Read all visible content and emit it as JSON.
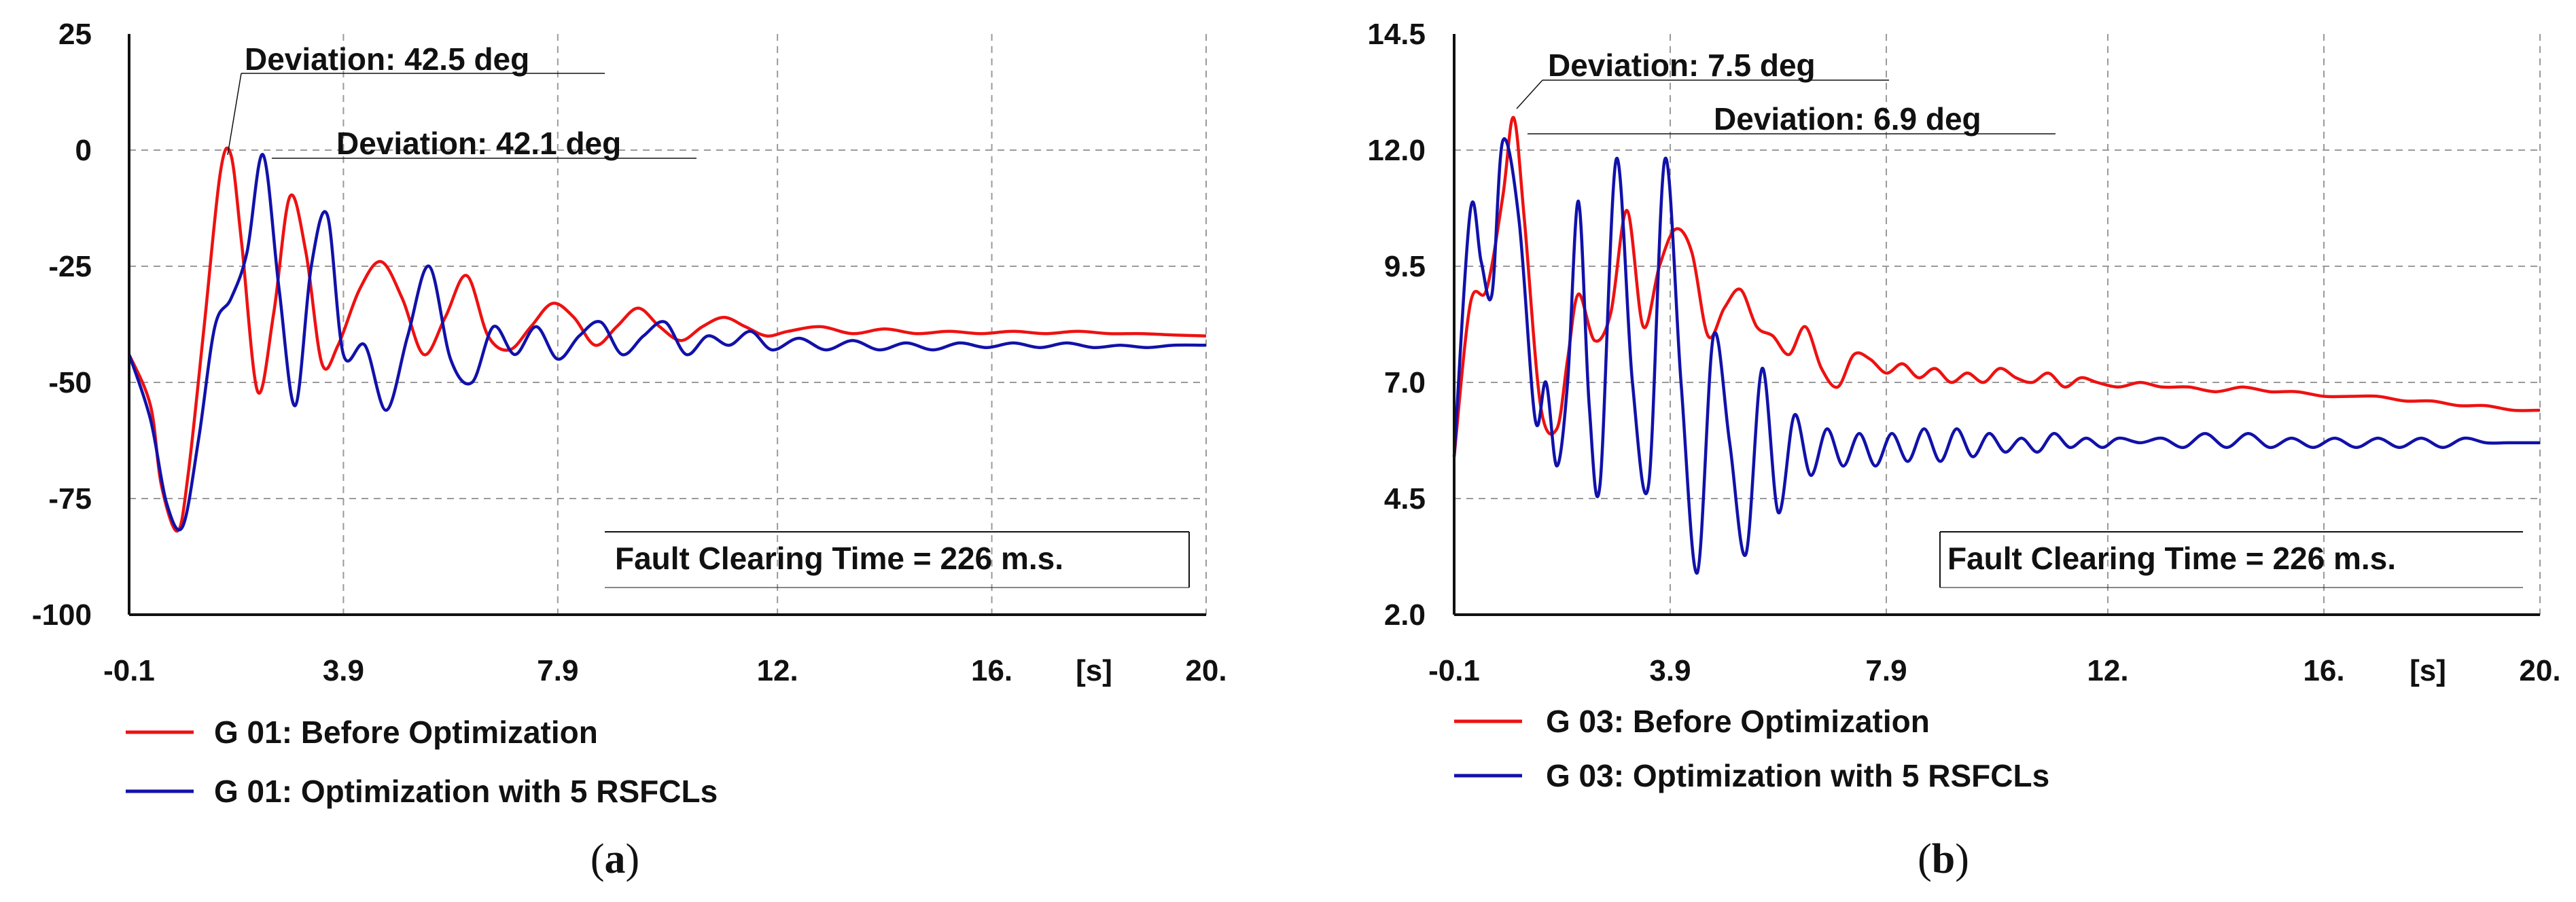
{
  "chart_data": [
    {
      "type": "line",
      "panel": "a",
      "xlim": [
        -0.1,
        20
      ],
      "ylim": [
        -100,
        25
      ],
      "x_ticks": [
        "-0.1",
        "3.9",
        "7.9",
        "12.",
        "16.",
        "20."
      ],
      "x_tick_values": [
        -0.1,
        3.9,
        7.9,
        12,
        16,
        20
      ],
      "x_unit": "[s]",
      "y_ticks": [
        "25",
        "0",
        "-25",
        "-50",
        "-75",
        "-100"
      ],
      "y_tick_values": [
        25,
        0,
        -25,
        -50,
        -75,
        -100
      ],
      "annotations": [
        "Deviation: 42.5 deg",
        "Deviation: 42.1 deg"
      ],
      "fault_text": "Fault Clearing Time = 226 m.s.",
      "series": [
        {
          "name": "G 01: Before Optimization",
          "color": "#ee1111",
          "x": [
            -0.1,
            0.3,
            0.5,
            0.8,
            1.0,
            1.3,
            1.6,
            1.8,
            2.0,
            2.3,
            2.6,
            2.9,
            3.2,
            3.5,
            3.8,
            4.2,
            4.6,
            5.0,
            5.4,
            5.8,
            6.2,
            6.6,
            7.0,
            7.4,
            7.8,
            8.2,
            8.6,
            9.0,
            9.4,
            9.8,
            10.2,
            10.6,
            11.0,
            11.4,
            11.8,
            12.2,
            12.8,
            13.4,
            14.0,
            14.6,
            15.2,
            15.8,
            16.4,
            17.0,
            17.6,
            18.2,
            18.8,
            19.4,
            20.0
          ],
          "y": [
            -44,
            -55,
            -72,
            -82,
            -70,
            -38,
            -5,
            -1,
            -20,
            -52,
            -35,
            -10,
            -22,
            -46,
            -42,
            -30,
            -24,
            -32,
            -44,
            -36,
            -27,
            -40,
            -43,
            -38,
            -33,
            -36,
            -42,
            -38,
            -34,
            -38,
            -41,
            -38,
            -36,
            -38,
            -40,
            -39,
            -38,
            -39.5,
            -38.5,
            -39.5,
            -39,
            -39.5,
            -39,
            -39.5,
            -39,
            -39.5,
            -39.5,
            -39.8,
            -40
          ]
        },
        {
          "name": "G 01: Optimization with 5 RSFCLs",
          "color": "#1111aa",
          "x": [
            -0.1,
            0.3,
            0.6,
            0.9,
            1.2,
            1.5,
            1.8,
            2.1,
            2.4,
            2.7,
            3.0,
            3.3,
            3.6,
            3.9,
            4.3,
            4.7,
            5.1,
            5.5,
            5.9,
            6.3,
            6.7,
            7.1,
            7.5,
            7.9,
            8.3,
            8.7,
            9.1,
            9.5,
            9.9,
            10.3,
            10.7,
            11.1,
            11.5,
            11.9,
            12.4,
            12.9,
            13.4,
            13.9,
            14.4,
            14.9,
            15.4,
            15.9,
            16.4,
            16.9,
            17.4,
            17.9,
            18.4,
            18.9,
            19.4,
            20.0
          ],
          "y": [
            -44,
            -58,
            -76,
            -81,
            -62,
            -38,
            -32,
            -22,
            -1,
            -30,
            -55,
            -25,
            -14,
            -44,
            -42,
            -56,
            -40,
            -25,
            -45,
            -50,
            -38,
            -44,
            -38,
            -45,
            -40,
            -37,
            -44,
            -40,
            -37,
            -44,
            -40,
            -42,
            -39,
            -43,
            -40.5,
            -43,
            -41,
            -43,
            -41.5,
            -43,
            -41.5,
            -42.5,
            -41.5,
            -42.5,
            -41.5,
            -42.5,
            -42,
            -42.5,
            -42,
            -42
          ]
        }
      ]
    },
    {
      "type": "line",
      "panel": "b",
      "xlim": [
        -0.1,
        20
      ],
      "ylim": [
        2.0,
        14.5
      ],
      "x_ticks": [
        "-0.1",
        "3.9",
        "7.9",
        "12.",
        "16.",
        "20."
      ],
      "x_tick_values": [
        -0.1,
        3.9,
        7.9,
        12,
        16,
        20
      ],
      "x_unit": "[s]",
      "y_ticks": [
        "14.5",
        "12.0",
        "9.5",
        "7.0",
        "4.5",
        "2.0"
      ],
      "y_tick_values": [
        14.5,
        12.0,
        9.5,
        7.0,
        4.5,
        2.0
      ],
      "annotations": [
        "Deviation: 7.5 deg",
        "Deviation: 6.9 deg"
      ],
      "fault_text": "Fault Clearing Time = 226 m.s.",
      "series": [
        {
          "name": "G 03: Before Optimization",
          "color": "#ee1111",
          "x": [
            -0.1,
            0.2,
            0.5,
            0.8,
            1.0,
            1.2,
            1.5,
            1.8,
            2.0,
            2.2,
            2.5,
            2.8,
            3.1,
            3.4,
            3.7,
            4.0,
            4.3,
            4.6,
            4.9,
            5.2,
            5.5,
            5.8,
            6.1,
            6.4,
            6.7,
            7.0,
            7.3,
            7.6,
            7.9,
            8.2,
            8.5,
            8.8,
            9.1,
            9.4,
            9.7,
            10.0,
            10.3,
            10.6,
            10.9,
            11.2,
            11.5,
            11.8,
            12.2,
            12.6,
            13.0,
            13.5,
            14.0,
            14.5,
            15.0,
            15.5,
            16.0,
            16.5,
            17.0,
            17.5,
            18.0,
            18.5,
            19.0,
            19.5,
            20.0
          ],
          "y": [
            5.4,
            8.7,
            9.0,
            11.0,
            12.7,
            10.5,
            6.5,
            6.0,
            7.5,
            8.9,
            7.9,
            8.5,
            10.7,
            8.2,
            9.5,
            10.3,
            9.8,
            8.0,
            8.6,
            9.0,
            8.2,
            8.0,
            7.6,
            8.2,
            7.3,
            6.9,
            7.6,
            7.5,
            7.2,
            7.4,
            7.1,
            7.3,
            7.0,
            7.2,
            7.0,
            7.3,
            7.1,
            7.0,
            7.2,
            6.9,
            7.1,
            7.0,
            6.9,
            7.0,
            6.9,
            6.9,
            6.8,
            6.9,
            6.8,
            6.8,
            6.7,
            6.7,
            6.7,
            6.6,
            6.6,
            6.5,
            6.5,
            6.4,
            6.4
          ]
        },
        {
          "name": "G 03: Optimization with 5 RSFCLs",
          "color": "#1111aa",
          "x": [
            -0.1,
            0.2,
            0.4,
            0.6,
            0.8,
            1.1,
            1.4,
            1.6,
            1.8,
            2.0,
            2.2,
            2.4,
            2.6,
            2.9,
            3.2,
            3.5,
            3.8,
            4.1,
            4.4,
            4.7,
            5.0,
            5.3,
            5.6,
            5.9,
            6.2,
            6.5,
            6.8,
            7.1,
            7.4,
            7.7,
            8.0,
            8.3,
            8.6,
            8.9,
            9.2,
            9.5,
            9.8,
            10.1,
            10.4,
            10.7,
            11.0,
            11.3,
            11.6,
            11.9,
            12.2,
            12.6,
            13.0,
            13.4,
            13.8,
            14.2,
            14.6,
            15.0,
            15.4,
            15.8,
            16.2,
            16.6,
            17.0,
            17.4,
            17.8,
            18.2,
            18.6,
            19.0,
            19.4,
            20.0
          ],
          "y": [
            5.4,
            10.7,
            9.6,
            8.9,
            12.2,
            10.5,
            6.2,
            7.0,
            5.2,
            7.0,
            10.9,
            6.5,
            4.8,
            11.8,
            7.0,
            4.8,
            11.8,
            7.0,
            2.9,
            8.0,
            5.7,
            3.3,
            7.3,
            4.2,
            6.3,
            5.0,
            6.0,
            5.2,
            5.9,
            5.2,
            5.9,
            5.3,
            6.0,
            5.3,
            6.0,
            5.4,
            5.9,
            5.5,
            5.8,
            5.5,
            5.9,
            5.6,
            5.8,
            5.6,
            5.8,
            5.7,
            5.8,
            5.6,
            5.9,
            5.6,
            5.9,
            5.6,
            5.8,
            5.6,
            5.8,
            5.6,
            5.8,
            5.6,
            5.8,
            5.6,
            5.8,
            5.7,
            5.7,
            5.7
          ]
        }
      ]
    }
  ],
  "captions": {
    "a": {
      "open": "(",
      "letter": "a",
      "close": ")"
    },
    "b": {
      "open": "(",
      "letter": "b",
      "close": ")"
    }
  }
}
